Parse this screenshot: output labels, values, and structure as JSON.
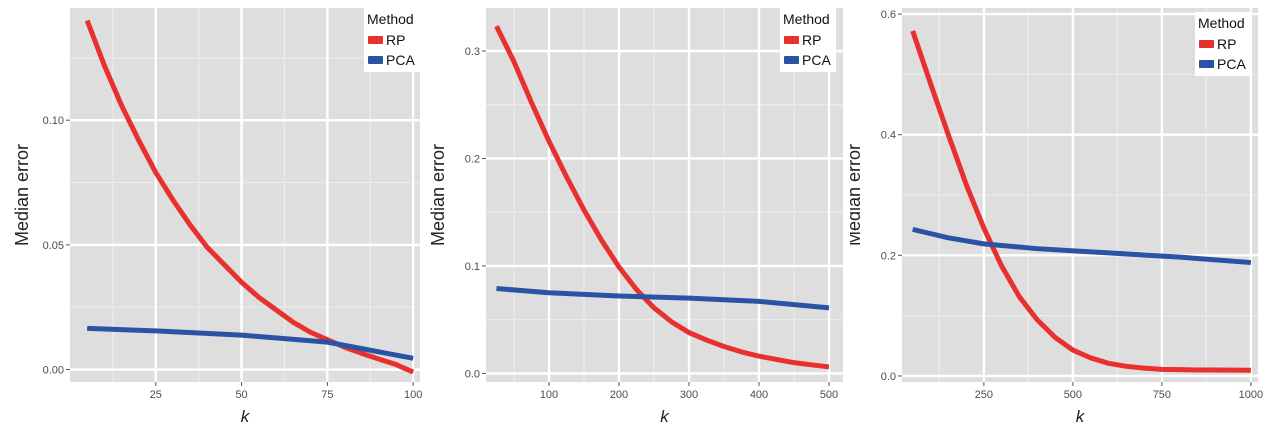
{
  "legend": {
    "title": "Method",
    "entries": [
      {
        "name": "RP",
        "color": "#e8302e"
      },
      {
        "name": "PCA",
        "color": "#2a54a3"
      }
    ]
  },
  "chart_data": [
    {
      "type": "line",
      "xlabel": "k",
      "ylabel": "Median error",
      "xlim": [
        0,
        102
      ],
      "ylim": [
        -0.005,
        0.145
      ],
      "xticks": [
        25,
        50,
        75,
        100
      ],
      "xtick_labels": [
        "25",
        "50",
        "75",
        "100"
      ],
      "yticks": [
        0,
        0.05,
        0.1
      ],
      "ytick_labels": [
        "0.00",
        "0.05",
        "0.10"
      ],
      "grid": true,
      "legend_position": "top-right",
      "series": [
        {
          "name": "RP",
          "x": [
            5,
            10,
            15,
            20,
            25,
            30,
            35,
            40,
            45,
            50,
            55,
            60,
            65,
            70,
            75,
            80,
            85,
            90,
            95,
            100
          ],
          "y": [
            0.14,
            0.122,
            0.106,
            0.092,
            0.079,
            0.068,
            0.058,
            0.049,
            0.042,
            0.035,
            0.029,
            0.024,
            0.019,
            0.015,
            0.012,
            0.009,
            0.0065,
            0.0042,
            0.002,
            -0.001
          ]
        },
        {
          "name": "PCA",
          "x": [
            5,
            25,
            50,
            75,
            100
          ],
          "y": [
            0.0165,
            0.0155,
            0.0138,
            0.011,
            0.0045
          ]
        }
      ]
    },
    {
      "type": "line",
      "xlabel": "k",
      "ylabel": "Median error",
      "xlim": [
        10,
        520
      ],
      "ylim": [
        -0.008,
        0.34
      ],
      "xticks": [
        100,
        200,
        300,
        400,
        500
      ],
      "xtick_labels": [
        "100",
        "200",
        "300",
        "400",
        "500"
      ],
      "yticks": [
        0,
        0.1,
        0.2,
        0.3
      ],
      "ytick_labels": [
        "0.0",
        "0.1",
        "0.2",
        "0.3"
      ],
      "grid": true,
      "legend_position": "top-right",
      "series": [
        {
          "name": "RP",
          "x": [
            25,
            50,
            75,
            100,
            125,
            150,
            175,
            200,
            225,
            250,
            275,
            300,
            325,
            350,
            375,
            400,
            425,
            450,
            475,
            500
          ],
          "y": [
            0.323,
            0.29,
            0.252,
            0.216,
            0.183,
            0.152,
            0.124,
            0.099,
            0.078,
            0.061,
            0.048,
            0.038,
            0.031,
            0.025,
            0.02,
            0.016,
            0.013,
            0.01,
            0.008,
            0.006
          ]
        },
        {
          "name": "PCA",
          "x": [
            25,
            100,
            200,
            300,
            400,
            500
          ],
          "y": [
            0.079,
            0.075,
            0.072,
            0.07,
            0.067,
            0.061
          ]
        }
      ]
    },
    {
      "type": "line",
      "xlabel": "k",
      "ylabel": "Median error",
      "xlim": [
        20,
        1020
      ],
      "ylim": [
        -0.01,
        0.61
      ],
      "xticks": [
        250,
        500,
        750,
        1000
      ],
      "xtick_labels": [
        "250",
        "500",
        "750",
        "1000"
      ],
      "yticks": [
        0,
        0.2,
        0.4,
        0.6
      ],
      "ytick_labels": [
        "0.0",
        "0.2",
        "0.4",
        "0.6"
      ],
      "grid": true,
      "legend_position": "top-right",
      "series": [
        {
          "name": "RP",
          "x": [
            50,
            100,
            150,
            200,
            250,
            300,
            350,
            400,
            450,
            500,
            550,
            600,
            650,
            700,
            750,
            800,
            850,
            900,
            950,
            1000
          ],
          "y": [
            0.572,
            0.485,
            0.4,
            0.318,
            0.245,
            0.182,
            0.131,
            0.093,
            0.064,
            0.043,
            0.03,
            0.021,
            0.016,
            0.013,
            0.011,
            0.0105,
            0.01,
            0.0098,
            0.0096,
            0.0095
          ]
        },
        {
          "name": "PCA",
          "x": [
            50,
            150,
            250,
            400,
            600,
            800,
            1000
          ],
          "y": [
            0.243,
            0.229,
            0.219,
            0.211,
            0.204,
            0.197,
            0.188
          ]
        }
      ]
    }
  ]
}
